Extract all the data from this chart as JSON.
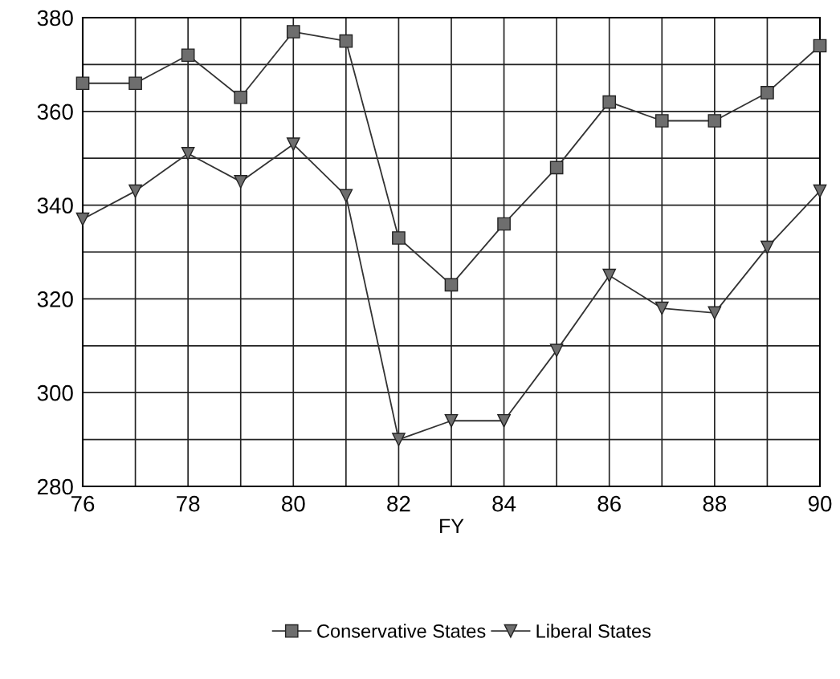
{
  "chart_data": {
    "type": "line",
    "xlabel": "FY",
    "x": [
      76,
      77,
      78,
      79,
      80,
      81,
      82,
      83,
      84,
      85,
      86,
      87,
      88,
      89,
      90
    ],
    "series": [
      {
        "name": "Conservative States",
        "color": "#333333",
        "marker": "square",
        "values": [
          366,
          366,
          372,
          363,
          377,
          375,
          333,
          323,
          336,
          348,
          362,
          358,
          358,
          364,
          374
        ]
      },
      {
        "name": "Liberal States",
        "color": "#333333",
        "marker": "triangle",
        "values": [
          337,
          343,
          351,
          345,
          353,
          342,
          290,
          294,
          294,
          309,
          325,
          318,
          317,
          331,
          343
        ]
      }
    ],
    "xlim": [
      76,
      90
    ],
    "xticks": [
      76,
      {
        "value": 77,
        "label": null
      },
      78,
      {
        "value": 79,
        "label": null
      },
      80,
      {
        "value": 81,
        "label": null
      },
      82,
      {
        "value": 83,
        "label": null
      },
      84,
      {
        "value": 85,
        "label": null
      },
      86,
      {
        "value": 87,
        "label": null
      },
      88,
      {
        "value": 89,
        "label": null
      },
      90
    ],
    "ylim": [
      280,
      380
    ],
    "yticks": [
      280,
      {
        "value": 290,
        "label": null
      },
      300,
      {
        "value": 310,
        "label": null
      },
      320,
      {
        "value": 330,
        "label": null
      },
      340,
      {
        "value": 350,
        "label": null
      },
      360,
      {
        "value": 370,
        "label": null
      },
      380
    ],
    "grid": true,
    "legend": "bottom",
    "line_style": "solid"
  }
}
